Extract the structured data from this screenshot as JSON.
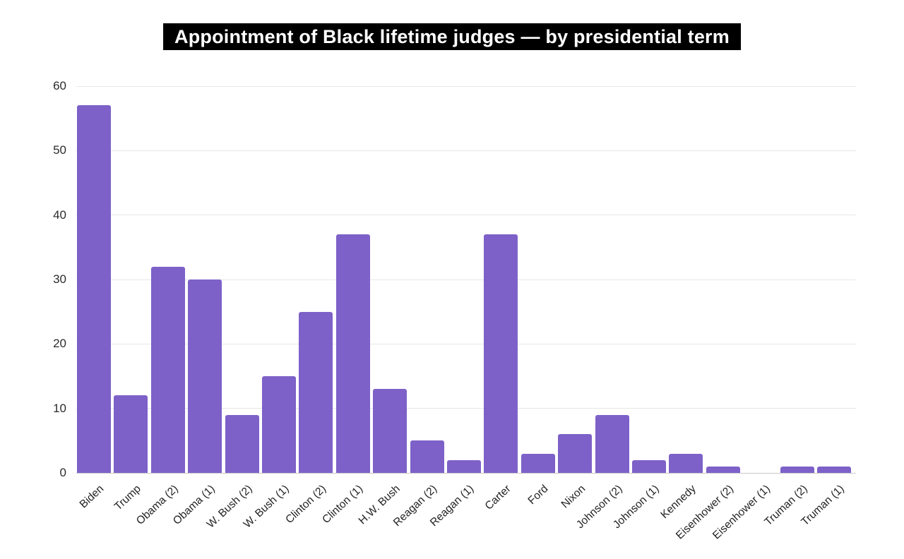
{
  "title": "Appointment of Black lifetime judges — by presidential term",
  "colors": {
    "bar": "#7d61c8",
    "title_bg": "#000000",
    "title_text": "#ffffff",
    "grid": "#e7e7e7",
    "axis_line": "#c9c9c9",
    "tick_text": "#2b2b2b",
    "background": "#ffffff"
  },
  "chart_data": {
    "type": "bar",
    "title": "Appointment of Black lifetime judges — by presidential term",
    "categories": [
      "Biden",
      "Trump",
      "Obama (2)",
      "Obama (1)",
      "W. Bush (2)",
      "W. Bush (1)",
      "Clinton (2)",
      "Clinton (1)",
      "H.W. Bush",
      "Reagan (2)",
      "Reagan (1)",
      "Carter",
      "Ford",
      "Nixon",
      "Johnson (2)",
      "Johnson (1)",
      "Kennedy",
      "Eisenhower (2)",
      "Eisenhower (1)",
      "Truman (2)",
      "Truman (1)"
    ],
    "values": [
      57,
      12,
      32,
      30,
      9,
      15,
      25,
      37,
      13,
      5,
      2,
      37,
      3,
      6,
      9,
      2,
      3,
      1,
      0,
      1,
      1
    ],
    "xlabel": "",
    "ylabel": "",
    "ylim": [
      0,
      60
    ],
    "yticks": [
      0,
      10,
      20,
      30,
      40,
      50,
      60
    ],
    "grid": true,
    "legend": false,
    "bar_color": "#7d61c8",
    "x_tick_rotation_deg": -43
  }
}
